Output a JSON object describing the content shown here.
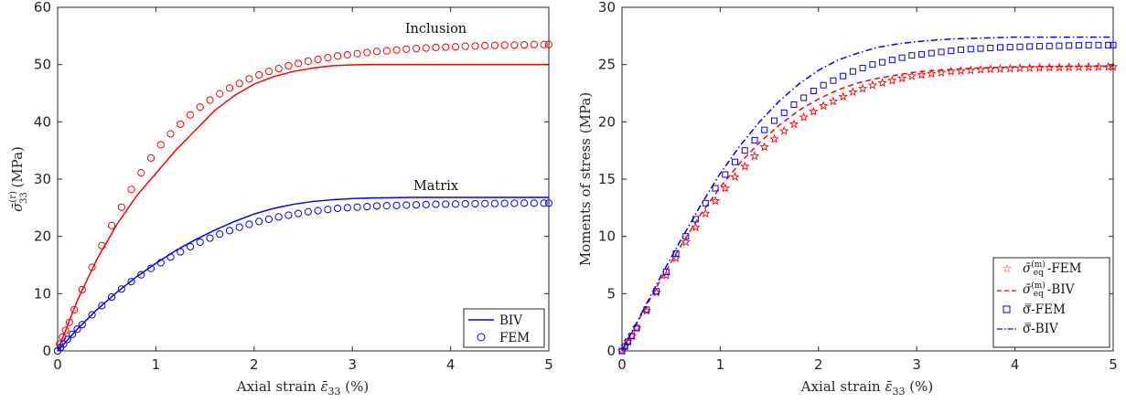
{
  "colors": {
    "red": "#ff0000",
    "blue": "#0000ff",
    "axis": "#262626"
  },
  "chart_data": [
    {
      "type": "line",
      "title": "",
      "xlabel": "Axial strain ε̄₃₃ (%)",
      "ylabel": "σ̄₃₃⁽ʳ⁾ (MPa)",
      "xlim": [
        0,
        5
      ],
      "ylim": [
        0,
        60
      ],
      "xticks": [
        0,
        1,
        2,
        3,
        4,
        5
      ],
      "yticks": [
        0,
        10,
        20,
        30,
        40,
        50,
        60
      ],
      "grid": false,
      "legend_position": "bottom-right",
      "legend": [
        {
          "label": "BIV",
          "style": "solid-line",
          "color": "#0000ff"
        },
        {
          "label": "FEM",
          "style": "circle-marker",
          "color": "#0000ff"
        }
      ],
      "annotations": [
        {
          "text": "Inclusion",
          "x": 3.85,
          "y": 55.5
        },
        {
          "text": "Matrix",
          "x": 3.85,
          "y": 28.1
        }
      ],
      "series": [
        {
          "group": "Inclusion",
          "method": "BIV",
          "style": "line",
          "color": "#ff0000",
          "x": [
            0,
            0.2,
            0.4,
            0.6,
            0.8,
            1.0,
            1.2,
            1.4,
            1.6,
            1.8,
            2.0,
            2.2,
            2.4,
            2.6,
            2.8,
            3.0,
            3.2,
            3.4,
            3.6,
            4.0,
            4.5,
            5.0
          ],
          "y": [
            0,
            8.8,
            16.0,
            22.0,
            27.0,
            31.0,
            35.0,
            38.5,
            42.0,
            44.6,
            46.6,
            47.9,
            48.8,
            49.4,
            49.8,
            49.95,
            50.0,
            50.0,
            50.0,
            50.0,
            50.0,
            50.0
          ]
        },
        {
          "group": "Inclusion",
          "method": "FEM",
          "style": "circle",
          "color": "#ff0000",
          "x": [
            0,
            0.02,
            0.05,
            0.08,
            0.12,
            0.17,
            0.25,
            0.35,
            0.45,
            0.55,
            0.65,
            0.75,
            0.85,
            0.95,
            1.05,
            1.15,
            1.25,
            1.35,
            1.45,
            1.55,
            1.65,
            1.75,
            1.85,
            1.95,
            2.05,
            2.15,
            2.25,
            2.35,
            2.45,
            2.55,
            2.65,
            2.75,
            2.85,
            2.95,
            3.05,
            3.15,
            3.25,
            3.35,
            3.45,
            3.55,
            3.65,
            3.75,
            3.85,
            3.95,
            4.05,
            4.15,
            4.25,
            4.35,
            4.45,
            4.55,
            4.65,
            4.75,
            4.85,
            4.95,
            5.0
          ],
          "y": [
            0,
            1.2,
            2.4,
            3.6,
            5.0,
            7.2,
            10.7,
            14.6,
            18.4,
            21.9,
            25.1,
            28.2,
            31.1,
            33.7,
            36.0,
            37.9,
            39.6,
            41.2,
            42.6,
            43.8,
            44.9,
            45.9,
            46.7,
            47.5,
            48.2,
            48.8,
            49.3,
            49.8,
            50.2,
            50.6,
            50.9,
            51.2,
            51.5,
            51.7,
            51.9,
            52.1,
            52.3,
            52.4,
            52.55,
            52.7,
            52.8,
            52.9,
            53.0,
            53.05,
            53.1,
            53.2,
            53.25,
            53.3,
            53.35,
            53.4,
            53.4,
            53.45,
            53.5,
            53.5,
            53.5
          ]
        },
        {
          "group": "Matrix",
          "method": "BIV",
          "style": "line",
          "color": "#0000ff",
          "x": [
            0,
            0.2,
            0.4,
            0.6,
            0.8,
            1.0,
            1.2,
            1.4,
            1.6,
            1.8,
            2.0,
            2.2,
            2.4,
            2.6,
            2.8,
            3.0,
            3.2,
            3.4,
            3.6,
            4.0,
            4.5,
            5.0
          ],
          "y": [
            0,
            3.8,
            7.2,
            10.2,
            12.9,
            15.3,
            17.5,
            19.4,
            21.1,
            22.6,
            23.9,
            24.9,
            25.6,
            26.1,
            26.4,
            26.6,
            26.7,
            26.75,
            26.8,
            26.8,
            26.8,
            26.8
          ]
        },
        {
          "group": "Matrix",
          "method": "FEM",
          "style": "circle",
          "color": "#0000ff",
          "x": [
            0,
            0.03,
            0.06,
            0.1,
            0.15,
            0.2,
            0.25,
            0.35,
            0.45,
            0.55,
            0.65,
            0.75,
            0.85,
            0.95,
            1.05,
            1.15,
            1.25,
            1.35,
            1.45,
            1.55,
            1.65,
            1.75,
            1.85,
            1.95,
            2.05,
            2.15,
            2.25,
            2.35,
            2.45,
            2.55,
            2.65,
            2.75,
            2.85,
            2.95,
            3.05,
            3.15,
            3.25,
            3.35,
            3.45,
            3.55,
            3.65,
            3.75,
            3.85,
            3.95,
            4.05,
            4.15,
            4.25,
            4.35,
            4.45,
            4.55,
            4.65,
            4.75,
            4.85,
            4.95,
            5.0
          ],
          "y": [
            0,
            0.6,
            1.2,
            2.0,
            2.9,
            3.8,
            4.6,
            6.3,
            7.9,
            9.4,
            10.8,
            12.1,
            13.3,
            14.4,
            15.4,
            16.4,
            17.3,
            18.2,
            19.0,
            19.7,
            20.4,
            21.0,
            21.6,
            22.1,
            22.6,
            23.0,
            23.4,
            23.7,
            24.0,
            24.3,
            24.5,
            24.7,
            24.9,
            25.0,
            25.1,
            25.2,
            25.3,
            25.35,
            25.4,
            25.45,
            25.5,
            25.55,
            25.6,
            25.62,
            25.65,
            25.68,
            25.7,
            25.72,
            25.74,
            25.76,
            25.78,
            25.8,
            25.8,
            25.8,
            25.8
          ]
        }
      ]
    },
    {
      "type": "line",
      "title": "",
      "xlabel": "Axial strain ε̄₃₃ (%)",
      "ylabel": "Moments of stress (MPa)",
      "xlim": [
        0,
        5
      ],
      "ylim": [
        0,
        30
      ],
      "xticks": [
        0,
        1,
        2,
        3,
        4,
        5
      ],
      "yticks": [
        0,
        5,
        10,
        15,
        20,
        25,
        30
      ],
      "grid": false,
      "legend_position": "bottom-right",
      "legend": [
        {
          "label": "σ̄ₑq⁽ᵐ⁾-FEM",
          "style": "star-marker",
          "color": "#ff0000"
        },
        {
          "label": "σ̄ₑq⁽ᵐ⁾-BIV",
          "style": "dashed-line",
          "color": "#ff0000"
        },
        {
          "label": "σ̿-FEM",
          "style": "square-marker",
          "color": "#0000ff"
        },
        {
          "label": "σ̿-BIV",
          "style": "dashdot-line",
          "color": "#0000ff"
        }
      ],
      "series": [
        {
          "name": "σ̄ₑq⁽ᵐ⁾-FEM",
          "style": "star",
          "color": "#ff0000",
          "x": [
            0,
            0.03,
            0.06,
            0.1,
            0.15,
            0.25,
            0.35,
            0.45,
            0.55,
            0.65,
            0.75,
            0.85,
            0.95,
            1.05,
            1.15,
            1.25,
            1.35,
            1.45,
            1.55,
            1.65,
            1.75,
            1.85,
            1.95,
            2.05,
            2.15,
            2.25,
            2.35,
            2.45,
            2.55,
            2.65,
            2.75,
            2.85,
            2.95,
            3.05,
            3.15,
            3.25,
            3.35,
            3.45,
            3.55,
            3.65,
            3.75,
            3.85,
            3.95,
            4.05,
            4.15,
            4.25,
            4.35,
            4.45,
            4.55,
            4.65,
            4.75,
            4.85,
            4.95,
            5.0
          ],
          "y": [
            0,
            0.4,
            0.8,
            1.3,
            2.0,
            3.5,
            5.1,
            6.6,
            8.1,
            9.5,
            10.8,
            12.0,
            13.1,
            14.2,
            15.2,
            16.1,
            17.0,
            17.8,
            18.5,
            19.2,
            19.8,
            20.4,
            20.9,
            21.4,
            21.8,
            22.2,
            22.6,
            22.9,
            23.2,
            23.4,
            23.6,
            23.8,
            24.0,
            24.1,
            24.2,
            24.3,
            24.4,
            24.45,
            24.5,
            24.55,
            24.6,
            24.62,
            24.65,
            24.68,
            24.7,
            24.72,
            24.74,
            24.75,
            24.76,
            24.77,
            24.78,
            24.8,
            24.8,
            24.8
          ]
        },
        {
          "name": "σ̄ₑq⁽ᵐ⁾-BIV",
          "style": "dashed",
          "color": "#ff0000",
          "x": [
            0,
            0.2,
            0.4,
            0.6,
            0.8,
            1.0,
            1.2,
            1.4,
            1.6,
            1.8,
            2.0,
            2.2,
            2.4,
            2.6,
            2.8,
            3.0,
            3.2,
            3.4,
            3.6,
            3.8,
            4.0,
            4.5,
            5.0
          ],
          "y": [
            0,
            3.2,
            6.3,
            9.2,
            11.9,
            14.3,
            16.4,
            18.2,
            19.7,
            21.0,
            22.0,
            22.8,
            23.4,
            23.8,
            24.1,
            24.35,
            24.5,
            24.6,
            24.7,
            24.75,
            24.8,
            24.85,
            24.85
          ]
        },
        {
          "name": "σ̿-FEM",
          "style": "square",
          "color": "#0000ff",
          "x": [
            0,
            0.03,
            0.06,
            0.1,
            0.15,
            0.25,
            0.35,
            0.45,
            0.55,
            0.65,
            0.75,
            0.85,
            0.95,
            1.05,
            1.15,
            1.25,
            1.35,
            1.45,
            1.55,
            1.65,
            1.75,
            1.85,
            1.95,
            2.05,
            2.15,
            2.25,
            2.35,
            2.45,
            2.55,
            2.65,
            2.75,
            2.85,
            2.95,
            3.05,
            3.15,
            3.25,
            3.35,
            3.45,
            3.55,
            3.65,
            3.75,
            3.85,
            3.95,
            4.05,
            4.15,
            4.25,
            4.35,
            4.45,
            4.55,
            4.65,
            4.75,
            4.85,
            4.95,
            5.0
          ],
          "y": [
            0,
            0.4,
            0.8,
            1.3,
            2.0,
            3.6,
            5.2,
            6.9,
            8.5,
            10.0,
            11.5,
            12.9,
            14.2,
            15.4,
            16.5,
            17.5,
            18.4,
            19.3,
            20.1,
            20.8,
            21.5,
            22.1,
            22.7,
            23.2,
            23.6,
            24.0,
            24.4,
            24.7,
            25.0,
            25.2,
            25.4,
            25.6,
            25.8,
            25.9,
            26.0,
            26.1,
            26.2,
            26.3,
            26.35,
            26.4,
            26.45,
            26.5,
            26.52,
            26.55,
            26.58,
            26.6,
            26.62,
            26.64,
            26.66,
            26.68,
            26.7,
            26.7,
            26.7,
            26.7
          ]
        },
        {
          "name": "σ̿-BIV",
          "style": "dashdot",
          "color": "#0000ff",
          "x": [
            0,
            0.2,
            0.4,
            0.6,
            0.8,
            1.0,
            1.2,
            1.4,
            1.6,
            1.8,
            2.0,
            2.2,
            2.4,
            2.6,
            2.8,
            3.0,
            3.2,
            3.4,
            3.6,
            3.8,
            4.0,
            4.5,
            5.0
          ],
          "y": [
            0,
            3.3,
            6.6,
            9.7,
            12.7,
            15.5,
            17.9,
            20.0,
            21.8,
            23.3,
            24.5,
            25.4,
            26.0,
            26.5,
            26.8,
            27.0,
            27.15,
            27.25,
            27.3,
            27.35,
            27.4,
            27.4,
            27.4
          ]
        }
      ]
    }
  ]
}
